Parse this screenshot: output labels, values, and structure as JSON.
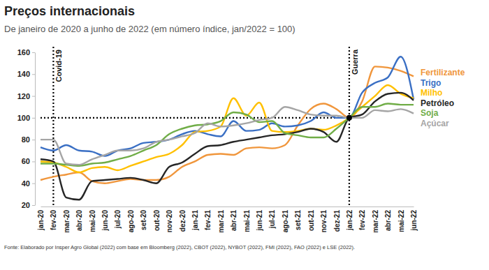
{
  "chart_data": {
    "type": "line",
    "title": "Preços internacionais",
    "subtitle": "De janeiro de 2020 a junho de 2022 (em número índice, jan/2022 = 100)",
    "source": "Fonte: Elaborado por Insper Agro Global (2022) com base em Bloomberg (2022), CBOT (2022), NYBOT (2022), FMI (2022), FAO (2022) e LSE (2022).",
    "categories": [
      "jan-20",
      "fev-20",
      "mar-20",
      "abr-20",
      "mai-20",
      "jun-20",
      "jul-20",
      "ago-20",
      "set-20",
      "out-20",
      "nov-20",
      "dez-20",
      "jan-21",
      "fev-21",
      "mar-21",
      "abr-21",
      "mai-21",
      "jun-21",
      "jul-21",
      "ago-21",
      "set-21",
      "out-21",
      "nov-21",
      "dez-21",
      "jan-22",
      "fev-22",
      "mar-22",
      "abr-22",
      "mai-22",
      "jun-22"
    ],
    "series": [
      {
        "name": "Fertilizante",
        "color": "#f0963c",
        "values": [
          43,
          46,
          48,
          50,
          42,
          40,
          42,
          44,
          43,
          43,
          46,
          55,
          60,
          66,
          67,
          66,
          72,
          73,
          72,
          75,
          93,
          108,
          113,
          108,
          100,
          115,
          147,
          146,
          143,
          138
        ]
      },
      {
        "name": "Trigo",
        "color": "#3a6fc4",
        "values": [
          73,
          70,
          75,
          70,
          69,
          65,
          70,
          72,
          77,
          78,
          80,
          85,
          88,
          85,
          83,
          97,
          88,
          89,
          95,
          92,
          93,
          97,
          105,
          100,
          100,
          123,
          132,
          137,
          156,
          117
        ]
      },
      {
        "name": "Milho",
        "color": "#ffc000",
        "values": [
          60,
          59,
          55,
          50,
          54,
          55,
          52,
          56,
          60,
          64,
          67,
          75,
          87,
          88,
          92,
          118,
          102,
          114,
          88,
          87,
          88,
          90,
          89,
          93,
          100,
          110,
          120,
          130,
          122,
          118
        ]
      },
      {
        "name": "Petróleo",
        "color": "#262626",
        "values": [
          62,
          60,
          27,
          25,
          42,
          43,
          44,
          45,
          43,
          40,
          55,
          59,
          67,
          74,
          75,
          78,
          80,
          82,
          84,
          85,
          87,
          90,
          87,
          78,
          100,
          103,
          115,
          122,
          123,
          116
        ]
      },
      {
        "name": "Soja",
        "color": "#70ad47",
        "values": [
          58,
          58,
          57,
          56,
          58,
          59,
          62,
          65,
          70,
          75,
          85,
          90,
          93,
          94,
          97,
          105,
          103,
          96,
          97,
          86,
          84,
          82,
          82,
          90,
          100,
          110,
          110,
          113,
          112,
          112
        ]
      },
      {
        "name": "Açúcar",
        "color": "#a5a5a5",
        "values": [
          80,
          80,
          58,
          57,
          62,
          66,
          70,
          70,
          72,
          78,
          80,
          83,
          86,
          95,
          92,
          93,
          95,
          98,
          100,
          110,
          107,
          103,
          102,
          102,
          100,
          100,
          107,
          106,
          108,
          104
        ]
      }
    ],
    "ylim": [
      20,
      160
    ],
    "yticks": [
      20,
      40,
      60,
      80,
      100,
      120,
      140,
      160
    ],
    "grid": false,
    "legend": "right",
    "reference_line": {
      "y": 100,
      "x": "jan-22"
    },
    "annotations": [
      {
        "text": "Covid-19",
        "x": "fev-20"
      },
      {
        "text": "Guerra",
        "x": "jan-22"
      }
    ]
  }
}
